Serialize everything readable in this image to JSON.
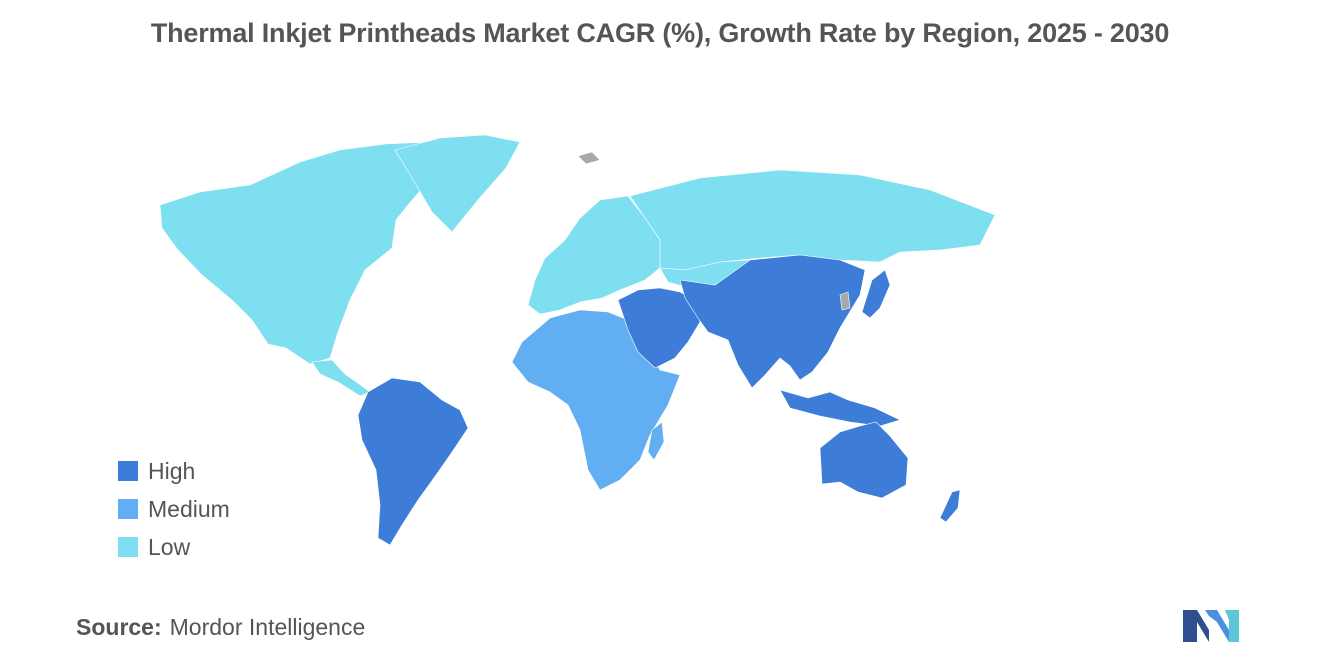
{
  "title": "Thermal Inkjet Printheads Market CAGR (%), Growth Rate by Region, 2025 - 2030",
  "legend": [
    {
      "label": "High",
      "color": "#3d7dd8"
    },
    {
      "label": "Medium",
      "color": "#62aef2"
    },
    {
      "label": "Low",
      "color": "#7ddff0"
    }
  ],
  "no_data_color": "#a8a8a8",
  "regions": {
    "north_america": "Low",
    "europe": "Low",
    "russia_north_asia": "Low",
    "africa": "Medium",
    "south_america": "High",
    "middle_east": "High",
    "asia": "High",
    "oceania": "High"
  },
  "source": {
    "label": "Source:",
    "value": "Mordor Intelligence"
  },
  "logo": {
    "icon": "mordor-intelligence-logo-icon"
  }
}
